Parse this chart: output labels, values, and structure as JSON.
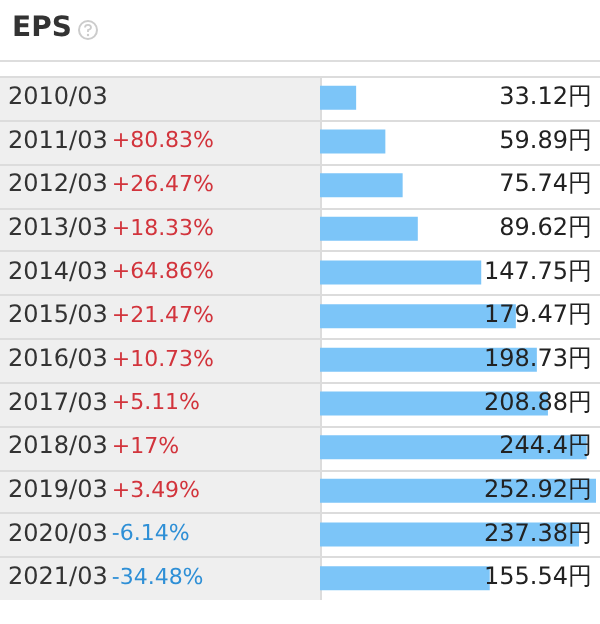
{
  "chart_data": {
    "type": "bar",
    "title": "EPS",
    "orientation": "horizontal",
    "color": "#7cc5f8",
    "categories": [
      "2010/03",
      "2011/03",
      "2012/03",
      "2013/03",
      "2014/03",
      "2015/03",
      "2016/03",
      "2017/03",
      "2018/03",
      "2019/03",
      "2020/03",
      "2021/03"
    ],
    "values": [
      33.12,
      59.89,
      75.74,
      89.62,
      147.75,
      179.47,
      198.73,
      208.88,
      244.4,
      252.92,
      237.38,
      155.54
    ],
    "value_labels": [
      "33.12円",
      "59.89円",
      "75.74円",
      "89.62円",
      "147.75円",
      "179.47円",
      "198.73円",
      "208.88円",
      "244.4円",
      "252.92円",
      "237.38円",
      "155.54円"
    ],
    "annotations": [
      "+80.83%",
      "+26.47%",
      "+18.33%",
      "+64.86%",
      "+21.47%",
      "+10.73%",
      "+5.11%",
      "+17%",
      "+3.49%",
      "-6.14%",
      "-34.48%"
    ],
    "grid": "y",
    "legend": false
  }
}
